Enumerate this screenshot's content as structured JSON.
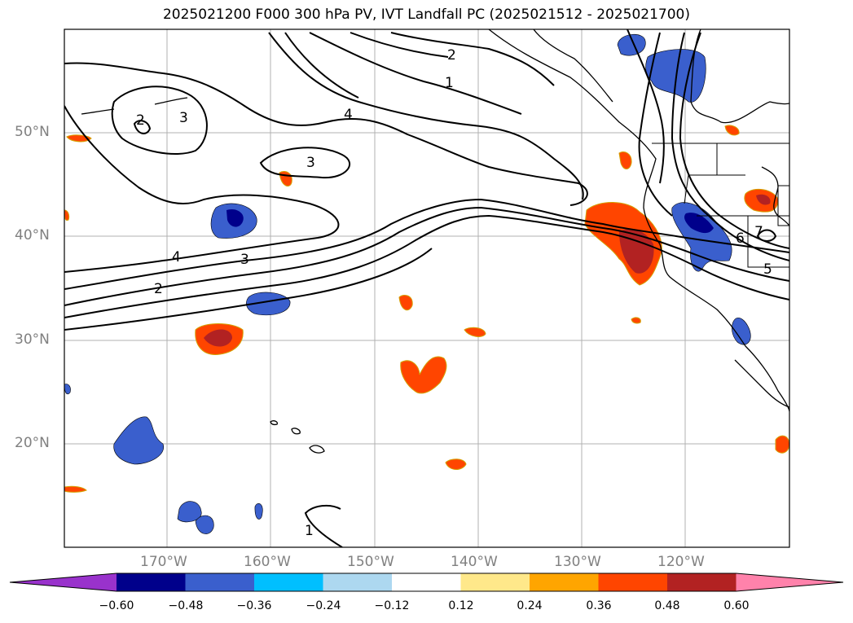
{
  "title": "2025021200 F000 300 hPa PV, IVT Landfall PC (2025021512 - 2025021700)",
  "lat_labels": [
    "50°N",
    "40°N",
    "30°N",
    "20°N"
  ],
  "lon_labels": [
    "170°W",
    "160°W",
    "150°W",
    "140°W",
    "130°W",
    "120°W"
  ],
  "contour_labels": [
    "2",
    "3",
    "4",
    "3",
    "3",
    "4",
    "2",
    "2",
    "1",
    "1",
    "6",
    "7",
    "5"
  ],
  "colorbar": {
    "ticks": [
      "−0.60",
      "−0.48",
      "−0.36",
      "−0.24",
      "−0.12",
      "0.12",
      "0.24",
      "0.36",
      "0.48",
      "0.60"
    ],
    "colors": [
      "#9932cc",
      "#00008b",
      "#3a5fcd",
      "#00bfff",
      "#add8f0",
      "#ffffff",
      "#ffe88a",
      "#ffa500",
      "#ff4500",
      "#b22222",
      "#ff82ab"
    ]
  }
}
